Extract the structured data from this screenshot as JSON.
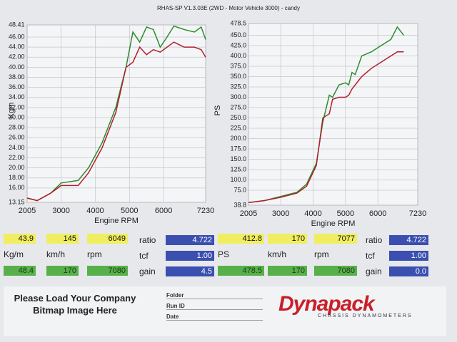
{
  "header": {
    "title": "RHAS-SP V1.3.03E  (2WD - Motor Vehicle 3000) - candy"
  },
  "chart_data": [
    {
      "type": "line",
      "y_label": "Kgm",
      "x_label": "Engine RPM",
      "x": [
        2005,
        2300,
        2700,
        3000,
        3500,
        3800,
        4200,
        4600,
        4900,
        5100,
        5300,
        5500,
        5700,
        5900,
        6100,
        6300,
        6600,
        6900,
        7100,
        7230
      ],
      "series": [
        {
          "color": "#2e8b2e",
          "values": [
            14,
            13.5,
            15,
            17,
            17.5,
            20,
            25,
            32,
            40,
            47,
            45,
            48,
            47.5,
            44,
            46,
            48.2,
            47.5,
            47,
            48,
            45.5
          ]
        },
        {
          "color": "#b0202a",
          "values": [
            14,
            13.5,
            15,
            16.5,
            16.5,
            19,
            24,
            31,
            40,
            41,
            44,
            42.5,
            43.5,
            43,
            44,
            45,
            44,
            44,
            43.5,
            42
          ]
        }
      ],
      "xlim": [
        2005,
        7230
      ],
      "xticks": [
        2005,
        3000,
        4000,
        5000,
        6000,
        7230
      ],
      "ylim": [
        13.15,
        48.41
      ],
      "yticks": [
        13.15,
        {
          "value": 16,
          "label": "16.00"
        },
        {
          "value": 18,
          "label": "18.00"
        },
        {
          "value": 20,
          "label": "20.00"
        },
        {
          "value": 22,
          "label": "22.00"
        },
        {
          "value": 24,
          "label": "24.00"
        },
        {
          "value": 26,
          "label": "26.00"
        },
        {
          "value": 28,
          "label": "28.00"
        },
        {
          "value": 30,
          "label": "30.00"
        },
        {
          "value": 32,
          "label": "32.00"
        },
        {
          "value": 34,
          "label": "34.00"
        },
        {
          "value": 36,
          "label": "36.00"
        },
        {
          "value": 38,
          "label": "38.00"
        },
        {
          "value": 40,
          "label": "40.00"
        },
        {
          "value": 42,
          "label": "42.00"
        },
        {
          "value": 44,
          "label": "44.00"
        },
        {
          "value": 46,
          "label": "46.00"
        },
        48.41
      ],
      "grid": true
    },
    {
      "type": "line",
      "y_label": "PS",
      "x_label": "Engine RPM",
      "x": [
        2005,
        2500,
        3000,
        3500,
        3800,
        4100,
        4300,
        4500,
        4600,
        4800,
        5000,
        5100,
        5200,
        5300,
        5500,
        5800,
        6100,
        6400,
        6600,
        6800
      ],
      "series": [
        {
          "color": "#2e8b2e",
          "values": [
            45,
            50,
            60,
            70,
            90,
            140,
            240,
            305,
            300,
            330,
            335,
            330,
            360,
            355,
            400,
            410,
            425,
            440,
            470,
            450
          ]
        },
        {
          "color": "#b0202a",
          "values": [
            45,
            50,
            58,
            68,
            85,
            135,
            250,
            260,
            295,
            300,
            300,
            305,
            320,
            330,
            350,
            370,
            385,
            400,
            410,
            410
          ]
        }
      ],
      "xlim": [
        2005,
        7230
      ],
      "xticks": [
        2005,
        3000,
        4000,
        5000,
        6000,
        7230
      ],
      "ylim": [
        38.8,
        478.5
      ],
      "yticks": [
        38.8,
        {
          "value": 75,
          "label": "75.0"
        },
        {
          "value": 100,
          "label": "100.0"
        },
        {
          "value": 125,
          "label": "125.0"
        },
        {
          "value": 150,
          "label": "150.0"
        },
        {
          "value": 175,
          "label": "175.0"
        },
        {
          "value": 200,
          "label": "200.0"
        },
        {
          "value": 225,
          "label": "225.0"
        },
        {
          "value": 250,
          "label": "250.0"
        },
        {
          "value": 275,
          "label": "275.0"
        },
        {
          "value": 300,
          "label": "300.0"
        },
        {
          "value": 325,
          "label": "325.0"
        },
        {
          "value": 350,
          "label": "350.0"
        },
        {
          "value": 375,
          "label": "375.0"
        },
        {
          "value": 400,
          "label": "400.0"
        },
        {
          "value": 425,
          "label": "425.0"
        },
        {
          "value": 450,
          "label": "450.0"
        },
        478.5
      ],
      "grid": true
    }
  ],
  "panels": [
    {
      "readout": [
        "43.9",
        "145",
        "6049"
      ],
      "units": [
        "Kg/m",
        "km/h",
        "rpm"
      ],
      "peak": [
        "48.4",
        "170",
        "7080"
      ],
      "factors": [
        {
          "label": "ratio",
          "value": "4.722"
        },
        {
          "label": "tcf",
          "value": "1.00"
        },
        {
          "label": "gain",
          "value": "4.5"
        }
      ]
    },
    {
      "readout": [
        "412.8",
        "170",
        "7077"
      ],
      "units": [
        "PS",
        "km/h",
        "rpm"
      ],
      "peak": [
        "478.5",
        "170",
        "7080"
      ],
      "factors": [
        {
          "label": "ratio",
          "value": "4.722"
        },
        {
          "label": "tcf",
          "value": "1.00"
        },
        {
          "label": "gain",
          "value": "0.0"
        }
      ]
    }
  ],
  "footer": {
    "bitmap_note": "Please Load Your Company Bitmap Image Here",
    "fields": [
      "Folder",
      "Run ID",
      "Date"
    ],
    "brand": "Dynapack",
    "brand_sub": "CHASSIS DYNAMOMETERS"
  }
}
